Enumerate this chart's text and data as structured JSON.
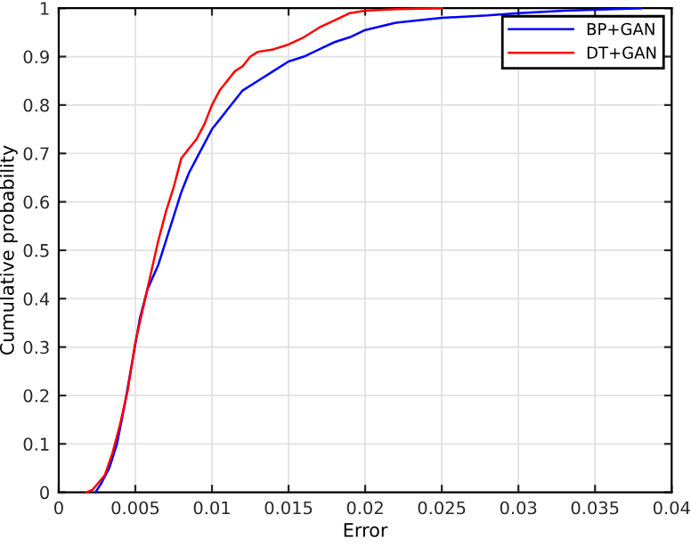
{
  "chart_data": {
    "type": "line",
    "xlabel": "Error",
    "ylabel": "Cumulative probability",
    "xlim": [
      0,
      0.04
    ],
    "ylim": [
      0,
      1
    ],
    "xticks": [
      0,
      0.005,
      0.01,
      0.015,
      0.02,
      0.025,
      0.03,
      0.035,
      0.04
    ],
    "yticks": [
      0,
      0.1,
      0.2,
      0.3,
      0.4,
      0.5,
      0.6,
      0.7,
      0.8,
      0.9,
      1
    ],
    "grid": true,
    "legend": "top right",
    "marker": "none",
    "line_style": "solid",
    "series": [
      {
        "name": "BP+GAN",
        "color": "#0000ff",
        "x": [
          0.0024,
          0.0028,
          0.0033,
          0.0038,
          0.0043,
          0.0048,
          0.0053,
          0.0058,
          0.0065,
          0.007,
          0.0075,
          0.008,
          0.0085,
          0.009,
          0.0095,
          0.01,
          0.011,
          0.012,
          0.013,
          0.014,
          0.015,
          0.016,
          0.017,
          0.018,
          0.019,
          0.02,
          0.022,
          0.025,
          0.028,
          0.03,
          0.033,
          0.038
        ],
        "values": [
          0,
          0.02,
          0.05,
          0.1,
          0.18,
          0.27,
          0.36,
          0.42,
          0.47,
          0.52,
          0.57,
          0.62,
          0.66,
          0.69,
          0.72,
          0.75,
          0.79,
          0.83,
          0.85,
          0.87,
          0.89,
          0.9,
          0.915,
          0.93,
          0.94,
          0.955,
          0.97,
          0.98,
          0.985,
          0.99,
          0.995,
          1
        ]
      },
      {
        "name": "DT+GAN",
        "color": "#ff0000",
        "x": [
          0.0018,
          0.0022,
          0.0026,
          0.003,
          0.0035,
          0.004,
          0.0045,
          0.005,
          0.0055,
          0.006,
          0.0065,
          0.007,
          0.0075,
          0.008,
          0.0085,
          0.009,
          0.0095,
          0.01,
          0.0105,
          0.011,
          0.0115,
          0.012,
          0.0125,
          0.013,
          0.014,
          0.015,
          0.016,
          0.017,
          0.018,
          0.019,
          0.02,
          0.022,
          0.025
        ],
        "values": [
          0,
          0.005,
          0.02,
          0.035,
          0.08,
          0.14,
          0.21,
          0.31,
          0.38,
          0.45,
          0.52,
          0.58,
          0.63,
          0.69,
          0.71,
          0.73,
          0.76,
          0.8,
          0.83,
          0.85,
          0.87,
          0.88,
          0.9,
          0.91,
          0.915,
          0.925,
          0.94,
          0.96,
          0.975,
          0.99,
          0.995,
          0.998,
          1
        ]
      }
    ]
  }
}
